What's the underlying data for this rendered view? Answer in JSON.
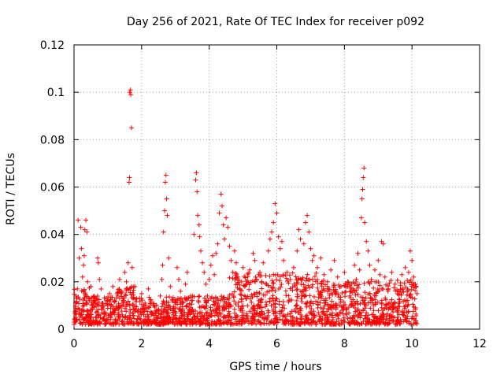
{
  "chart_data": {
    "type": "scatter",
    "title": "Day 256 of 2021, Rate Of TEC Index for receiver p092",
    "xlabel": "GPS time / hours",
    "ylabel": "ROTI / TECUs",
    "xlim": [
      0,
      12
    ],
    "ylim": [
      0,
      0.12
    ],
    "xticks": [
      0,
      2,
      4,
      6,
      8,
      10,
      12
    ],
    "xtick_labels": [
      "0",
      "2",
      "4",
      "6",
      "8",
      "10",
      "12"
    ],
    "yticks": [
      0,
      0.02,
      0.04,
      0.06,
      0.08,
      0.1,
      0.12
    ],
    "ytick_labels": [
      "0",
      "0.02",
      "0.04",
      "0.06",
      "0.08",
      "0.1",
      "0.12"
    ],
    "grid": true,
    "marker": "+",
    "series": [
      {
        "name": "ROTI",
        "color": "#ff0000",
        "points": [
          [
            0.02,
            0.004
          ],
          [
            0.05,
            0.008
          ],
          [
            0.08,
            0.013
          ],
          [
            0.1,
            0.017
          ],
          [
            0.12,
            0.046
          ],
          [
            0.15,
            0.03
          ],
          [
            0.2,
            0.043
          ],
          [
            0.22,
            0.034
          ],
          [
            0.25,
            0.022
          ],
          [
            0.28,
            0.027
          ],
          [
            0.3,
            0.031
          ],
          [
            0.32,
            0.042
          ],
          [
            0.35,
            0.046
          ],
          [
            0.38,
            0.041
          ],
          [
            0.4,
            0.02
          ],
          [
            0.45,
            0.012
          ],
          [
            0.5,
            0.018
          ],
          [
            0.55,
            0.009
          ],
          [
            0.6,
            0.014
          ],
          [
            0.65,
            0.007
          ],
          [
            0.7,
            0.03
          ],
          [
            0.72,
            0.028
          ],
          [
            0.75,
            0.021
          ],
          [
            0.8,
            0.017
          ],
          [
            0.85,
            0.011
          ],
          [
            0.9,
            0.007
          ],
          [
            0.95,
            0.013
          ],
          [
            1.0,
            0.01
          ],
          [
            1.05,
            0.015
          ],
          [
            1.1,
            0.006
          ],
          [
            1.15,
            0.018
          ],
          [
            1.2,
            0.012
          ],
          [
            1.25,
            0.009
          ],
          [
            1.3,
            0.014
          ],
          [
            1.35,
            0.021
          ],
          [
            1.4,
            0.016
          ],
          [
            1.45,
            0.011
          ],
          [
            1.5,
            0.024
          ],
          [
            1.55,
            0.02
          ],
          [
            1.6,
            0.028
          ],
          [
            1.63,
            0.062
          ],
          [
            1.64,
            0.064
          ],
          [
            1.65,
            0.1
          ],
          [
            1.67,
            0.101
          ],
          [
            1.68,
            0.099
          ],
          [
            1.7,
            0.085
          ],
          [
            1.72,
            0.026
          ],
          [
            1.75,
            0.013
          ],
          [
            1.8,
            0.018
          ],
          [
            1.9,
            0.008
          ],
          [
            2.0,
            0.015
          ],
          [
            2.1,
            0.011
          ],
          [
            2.2,
            0.017
          ],
          [
            2.3,
            0.007
          ],
          [
            2.4,
            0.01
          ],
          [
            2.5,
            0.008
          ],
          [
            2.55,
            0.014
          ],
          [
            2.6,
            0.021
          ],
          [
            2.62,
            0.027
          ],
          [
            2.65,
            0.041
          ],
          [
            2.68,
            0.05
          ],
          [
            2.7,
            0.062
          ],
          [
            2.72,
            0.065
          ],
          [
            2.74,
            0.055
          ],
          [
            2.76,
            0.048
          ],
          [
            2.8,
            0.03
          ],
          [
            2.85,
            0.018
          ],
          [
            2.9,
            0.012
          ],
          [
            3.0,
            0.009
          ],
          [
            3.05,
            0.026
          ],
          [
            3.1,
            0.021
          ],
          [
            3.15,
            0.016
          ],
          [
            3.2,
            0.011
          ],
          [
            3.3,
            0.019
          ],
          [
            3.35,
            0.024
          ],
          [
            3.4,
            0.008
          ],
          [
            3.45,
            0.014
          ],
          [
            3.5,
            0.012
          ],
          [
            3.55,
            0.04
          ],
          [
            3.6,
            0.063
          ],
          [
            3.62,
            0.066
          ],
          [
            3.64,
            0.058
          ],
          [
            3.66,
            0.048
          ],
          [
            3.7,
            0.044
          ],
          [
            3.72,
            0.039
          ],
          [
            3.75,
            0.033
          ],
          [
            3.8,
            0.028
          ],
          [
            3.85,
            0.024
          ],
          [
            3.9,
            0.019
          ],
          [
            3.95,
            0.014
          ],
          [
            4.0,
            0.021
          ],
          [
            4.05,
            0.027
          ],
          [
            4.1,
            0.031
          ],
          [
            4.15,
            0.023
          ],
          [
            4.2,
            0.032
          ],
          [
            4.25,
            0.036
          ],
          [
            4.3,
            0.049
          ],
          [
            4.35,
            0.057
          ],
          [
            4.38,
            0.052
          ],
          [
            4.42,
            0.044
          ],
          [
            4.45,
            0.038
          ],
          [
            4.5,
            0.047
          ],
          [
            4.55,
            0.043
          ],
          [
            4.6,
            0.035
          ],
          [
            4.65,
            0.029
          ],
          [
            4.7,
            0.024
          ],
          [
            4.75,
            0.033
          ],
          [
            4.8,
            0.028
          ],
          [
            4.85,
            0.022
          ],
          [
            4.9,
            0.017
          ],
          [
            5.0,
            0.026
          ],
          [
            5.1,
            0.019
          ],
          [
            5.2,
            0.025
          ],
          [
            5.3,
            0.032
          ],
          [
            5.35,
            0.029
          ],
          [
            5.4,
            0.021
          ],
          [
            5.5,
            0.024
          ],
          [
            5.6,
            0.028
          ],
          [
            5.7,
            0.019
          ],
          [
            5.75,
            0.033
          ],
          [
            5.8,
            0.038
          ],
          [
            5.85,
            0.041
          ],
          [
            5.9,
            0.045
          ],
          [
            5.95,
            0.053
          ],
          [
            6.0,
            0.049
          ],
          [
            6.05,
            0.039
          ],
          [
            6.1,
            0.034
          ],
          [
            6.15,
            0.037
          ],
          [
            6.2,
            0.029
          ],
          [
            6.3,
            0.024
          ],
          [
            6.4,
            0.021
          ],
          [
            6.5,
            0.026
          ],
          [
            6.6,
            0.033
          ],
          [
            6.65,
            0.042
          ],
          [
            6.7,
            0.038
          ],
          [
            6.8,
            0.036
          ],
          [
            6.85,
            0.045
          ],
          [
            6.9,
            0.048
          ],
          [
            6.95,
            0.041
          ],
          [
            7.0,
            0.034
          ],
          [
            7.05,
            0.029
          ],
          [
            7.1,
            0.031
          ],
          [
            7.2,
            0.026
          ],
          [
            7.3,
            0.03
          ],
          [
            7.4,
            0.023
          ],
          [
            7.5,
            0.02
          ],
          [
            7.6,
            0.025
          ],
          [
            7.7,
            0.029
          ],
          [
            7.8,
            0.022
          ],
          [
            7.9,
            0.018
          ],
          [
            8.0,
            0.024
          ],
          [
            8.1,
            0.02
          ],
          [
            8.2,
            0.017
          ],
          [
            8.3,
            0.027
          ],
          [
            8.35,
            0.021
          ],
          [
            8.4,
            0.032
          ],
          [
            8.45,
            0.025
          ],
          [
            8.5,
            0.047
          ],
          [
            8.52,
            0.055
          ],
          [
            8.54,
            0.059
          ],
          [
            8.56,
            0.064
          ],
          [
            8.58,
            0.068
          ],
          [
            8.6,
            0.045
          ],
          [
            8.65,
            0.037
          ],
          [
            8.7,
            0.033
          ],
          [
            8.75,
            0.027
          ],
          [
            8.8,
            0.021
          ],
          [
            8.9,
            0.025
          ],
          [
            9.0,
            0.029
          ],
          [
            9.05,
            0.023
          ],
          [
            9.1,
            0.037
          ],
          [
            9.15,
            0.036
          ],
          [
            9.2,
            0.022
          ],
          [
            9.3,
            0.017
          ],
          [
            9.4,
            0.024
          ],
          [
            9.5,
            0.019
          ],
          [
            9.6,
            0.016
          ],
          [
            9.7,
            0.023
          ],
          [
            9.8,
            0.026
          ],
          [
            9.9,
            0.024
          ],
          [
            9.95,
            0.033
          ],
          [
            10.0,
            0.029
          ],
          [
            10.05,
            0.022
          ],
          [
            10.1,
            0.019
          ],
          [
            10.15,
            0.015
          ]
        ]
      }
    ]
  }
}
